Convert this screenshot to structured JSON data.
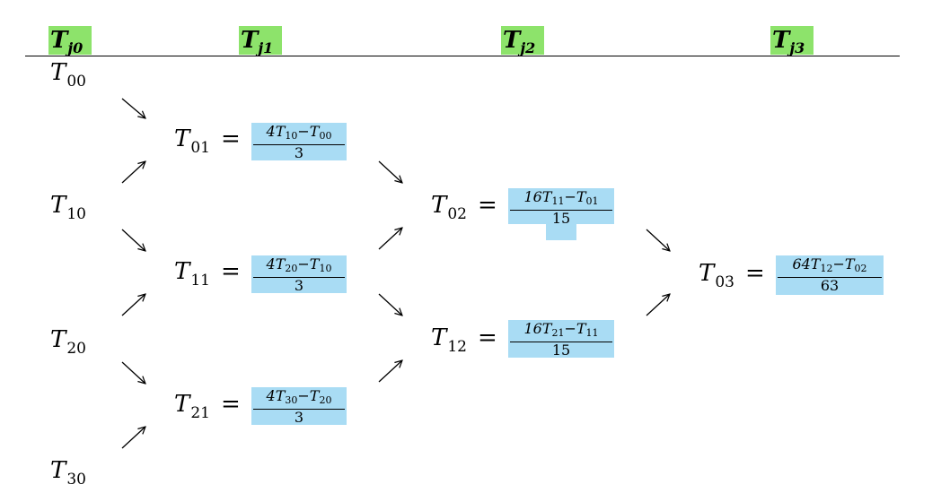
{
  "colors": {
    "header_highlight": "#8de36b",
    "fraction_highlight": "#a9dcf4"
  },
  "headers": [
    {
      "base": "T",
      "sub": "j0"
    },
    {
      "base": "T",
      "sub": "j1"
    },
    {
      "base": "T",
      "sub": "j2"
    },
    {
      "base": "T",
      "sub": "j3"
    }
  ],
  "column0": [
    {
      "base": "T",
      "sub": "00"
    },
    {
      "base": "T",
      "sub": "10"
    },
    {
      "base": "T",
      "sub": "20"
    },
    {
      "base": "T",
      "sub": "30"
    }
  ],
  "formulas": [
    {
      "lhs": "T",
      "lhs_sub": "01",
      "eq": "=",
      "coef": "4T",
      "a_sub": "10",
      "minus": "−T",
      "b_sub": "00",
      "den": "3"
    },
    {
      "lhs": "T",
      "lhs_sub": "11",
      "eq": "=",
      "coef": "4T",
      "a_sub": "20",
      "minus": "−T",
      "b_sub": "10",
      "den": "3"
    },
    {
      "lhs": "T",
      "lhs_sub": "21",
      "eq": "=",
      "coef": "4T",
      "a_sub": "30",
      "minus": "−T",
      "b_sub": "20",
      "den": "3"
    },
    {
      "lhs": "T",
      "lhs_sub": "02",
      "eq": "=",
      "coef": "16T",
      "a_sub": "11",
      "minus": "−T",
      "b_sub": "01",
      "den": "15"
    },
    {
      "lhs": "T",
      "lhs_sub": "12",
      "eq": "=",
      "coef": "16T",
      "a_sub": "21",
      "minus": "−T",
      "b_sub": "11",
      "den": "15"
    },
    {
      "lhs": "T",
      "lhs_sub": "03",
      "eq": "=",
      "coef": "64T",
      "a_sub": "12",
      "minus": "−T",
      "b_sub": "02",
      "den": "63"
    }
  ]
}
